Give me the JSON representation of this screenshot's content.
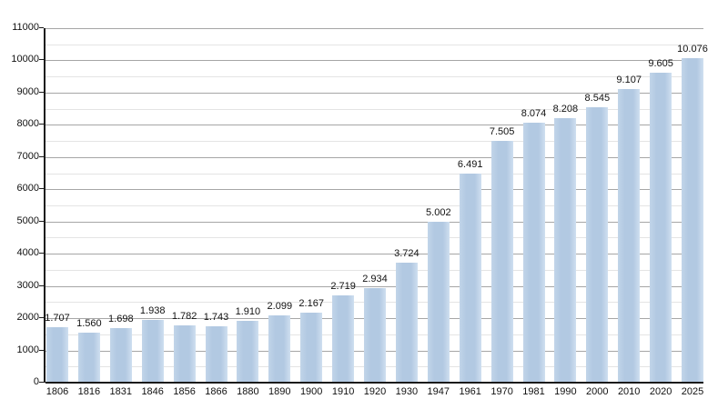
{
  "chart_data": {
    "type": "bar",
    "title": "",
    "xlabel": "",
    "ylabel": "",
    "categories": [
      "1806",
      "1816",
      "1831",
      "1846",
      "1856",
      "1866",
      "1880",
      "1890",
      "1900",
      "1910",
      "1920",
      "1930",
      "1947",
      "1961",
      "1970",
      "1981",
      "1990",
      "2000",
      "2010",
      "2020",
      "2025"
    ],
    "values": [
      1707,
      1560,
      1698,
      1938,
      1782,
      1743,
      1910,
      2099,
      2167,
      2719,
      2934,
      3724,
      5002,
      6491,
      7505,
      8074,
      8208,
      8545,
      9107,
      9605,
      10076
    ],
    "value_labels": [
      "1.707",
      "1.560",
      "1.698",
      "1.938",
      "1.782",
      "1.743",
      "1.910",
      "2.099",
      "2.167",
      "2.719",
      "2.934",
      "3.724",
      "5.002",
      "6.491",
      "7.505",
      "8.074",
      "8.208",
      "8.545",
      "9.107",
      "9.605",
      "10.076"
    ],
    "ylim": [
      0,
      11000
    ],
    "y_major_ticks": [
      0,
      1000,
      2000,
      3000,
      4000,
      5000,
      6000,
      7000,
      8000,
      9000,
      10000,
      11000
    ],
    "y_minor_step": 500,
    "grid": true,
    "legend": false,
    "colors": {
      "bar_left": "#c2d5e9",
      "bar_mid": "#b2c9e2",
      "bar_right": "#cfdff0",
      "major_grid": "#a6a6a6",
      "minor_grid": "#e4e4e4",
      "axis": "#1a1a1a",
      "text": "#111111",
      "background": "#ffffff"
    }
  }
}
